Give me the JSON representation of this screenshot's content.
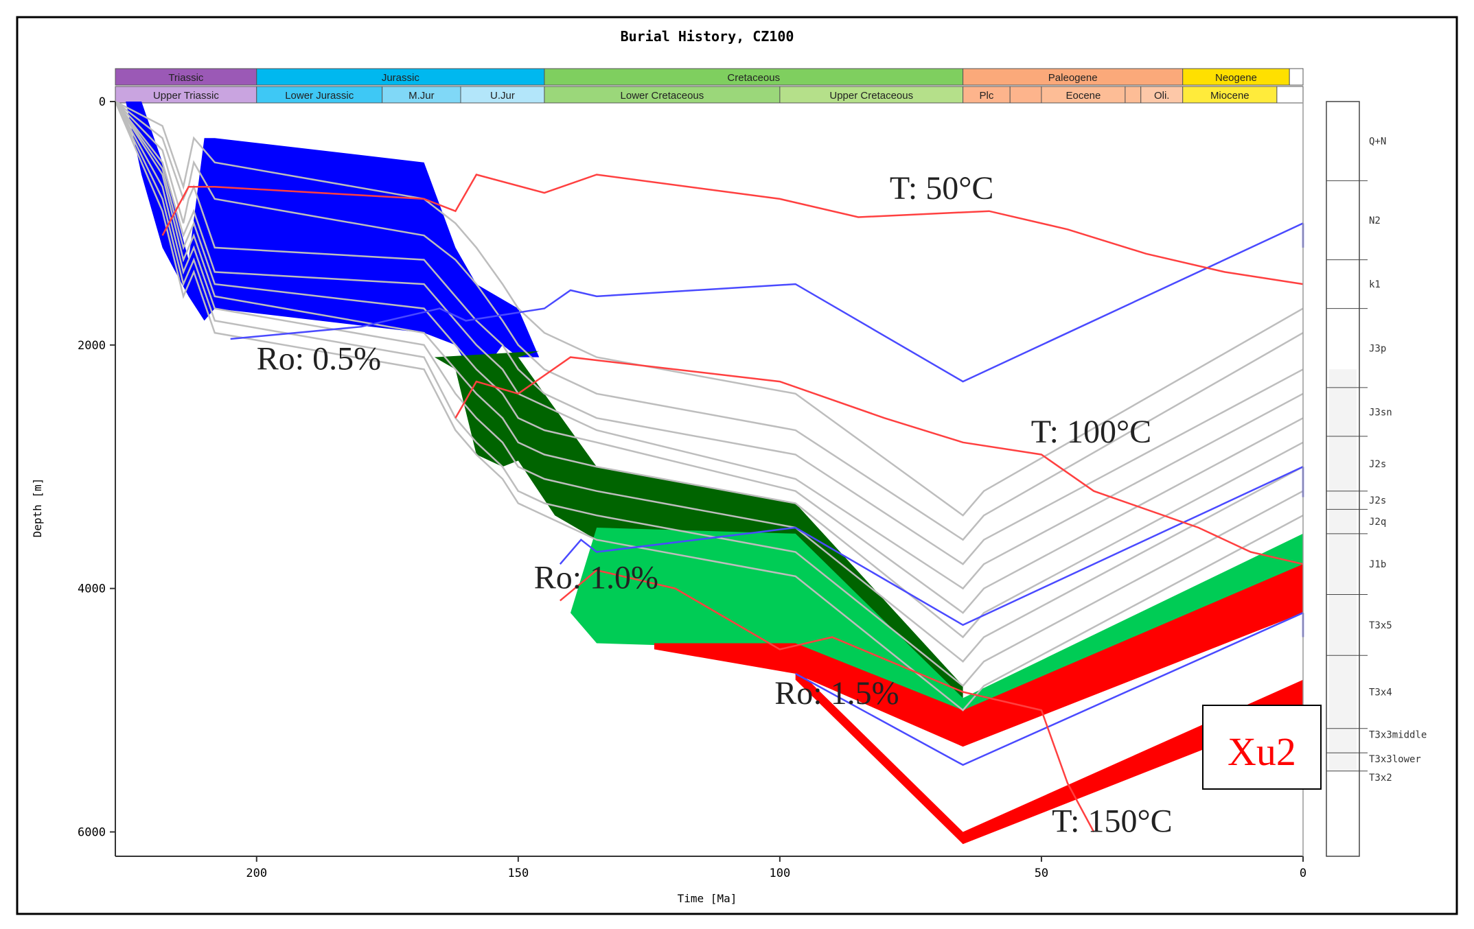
{
  "chart_data": {
    "type": "burial-history",
    "title": "Burial History, CZ100",
    "xlabel": "Time [Ma]",
    "ylabel": "Depth [m]",
    "xlim": [
      227,
      0
    ],
    "ylim": [
      0,
      6200
    ],
    "xticks": [
      200,
      150,
      100,
      50,
      0
    ],
    "yticks": [
      0,
      2000,
      4000,
      6000
    ],
    "periods": [
      {
        "label": "Triassic",
        "start": 227,
        "end": 200,
        "color": "#9b59b6"
      },
      {
        "label": "Jurassic",
        "start": 200,
        "end": 145,
        "color": "#00b8ef"
      },
      {
        "label": "Cretaceous",
        "start": 145,
        "end": 65,
        "color": "#7fcf5f"
      },
      {
        "label": "Paleogene",
        "start": 65,
        "end": 23,
        "color": "#fba97a"
      },
      {
        "label": "Neogene",
        "start": 23,
        "end": 2.6,
        "color": "#ffe000"
      },
      {
        "label": "",
        "start": 2.6,
        "end": 0,
        "color": "#ffffff"
      }
    ],
    "epochs": [
      {
        "label": "Upper Triassic",
        "start": 227,
        "end": 200,
        "color": "#c9a4e0"
      },
      {
        "label": "Lower Jurassic",
        "start": 200,
        "end": 176,
        "color": "#3ec8f5"
      },
      {
        "label": "M.Jur",
        "start": 176,
        "end": 161,
        "color": "#80d8f7"
      },
      {
        "label": "U.Jur",
        "start": 161,
        "end": 145,
        "color": "#b3e6fa"
      },
      {
        "label": "Lower Cretaceous",
        "start": 145,
        "end": 100,
        "color": "#9bd77a"
      },
      {
        "label": "Upper Cretaceous",
        "start": 100,
        "end": 65,
        "color": "#b5e08a"
      },
      {
        "label": "Plc",
        "start": 65,
        "end": 56,
        "color": "#fdb48c"
      },
      {
        "label": "",
        "start": 56,
        "end": 50,
        "color": "#fdb48c"
      },
      {
        "label": "Eocene",
        "start": 50,
        "end": 34,
        "color": "#fdbd96"
      },
      {
        "label": "",
        "start": 34,
        "end": 31,
        "color": "#fdbd96"
      },
      {
        "label": "Oli.",
        "start": 31,
        "end": 23,
        "color": "#fdc8a8"
      },
      {
        "label": "Miocene",
        "start": 23,
        "end": 5,
        "color": "#ffeb3b"
      },
      {
        "label": "",
        "start": 5,
        "end": 0,
        "color": "#ffffff"
      }
    ],
    "horizon_times": [
      227,
      218,
      214,
      213,
      212,
      208,
      168,
      162,
      158,
      153,
      150,
      145,
      135,
      97,
      65,
      61,
      0
    ],
    "horizons": [
      [
        0,
        0,
        0,
        0,
        0,
        0,
        0,
        0,
        0,
        0,
        0,
        0,
        0,
        0,
        0,
        0,
        0
      ],
      [
        0,
        200,
        700,
        500,
        300,
        500,
        800,
        1000,
        1200,
        1500,
        1700,
        1900,
        2100,
        2400,
        3400,
        3200,
        1700
      ],
      [
        0,
        300,
        800,
        700,
        500,
        800,
        1100,
        1300,
        1500,
        1800,
        2000,
        2200,
        2400,
        2700,
        3600,
        3400,
        1900
      ],
      [
        0,
        400,
        1000,
        800,
        700,
        1200,
        1300,
        1600,
        1800,
        2000,
        2200,
        2400,
        2600,
        2900,
        3800,
        3600,
        2200
      ],
      [
        0,
        500,
        1100,
        1000,
        900,
        1400,
        1500,
        1800,
        2000,
        2200,
        2400,
        2500,
        2700,
        3100,
        4000,
        3800,
        2400
      ],
      [
        0,
        550,
        1200,
        1100,
        1000,
        1500,
        1700,
        2000,
        2200,
        2400,
        2600,
        2700,
        2800,
        3200,
        4200,
        4000,
        2600
      ],
      [
        0,
        600,
        1300,
        1200,
        1100,
        1600,
        1900,
        2200,
        2400,
        2600,
        2800,
        2900,
        3000,
        3300,
        4400,
        4200,
        2800
      ],
      [
        0,
        700,
        1400,
        1300,
        1200,
        1700,
        2000,
        2400,
        2600,
        2800,
        3000,
        3100,
        3200,
        3500,
        4600,
        4400,
        3000
      ],
      [
        0,
        800,
        1500,
        1400,
        1300,
        1800,
        2100,
        2600,
        2800,
        3000,
        3200,
        3300,
        3400,
        3700,
        4800,
        4600,
        3200
      ],
      [
        0,
        900,
        1600,
        1500,
        1400,
        1900,
        2200,
        2700,
        2900,
        3100,
        3300,
        3400,
        3600,
        3900,
        5000,
        4800,
        3400
      ]
    ],
    "zones": [
      {
        "name": "immature-blue",
        "color": "#0000ff",
        "upper": [
          [
            225,
            0
          ],
          [
            222,
            0
          ],
          [
            218,
            500
          ],
          [
            213,
            1300
          ],
          [
            210,
            300
          ],
          [
            208,
            300
          ],
          [
            168,
            500
          ],
          [
            162,
            1200
          ],
          [
            158,
            1500
          ],
          [
            150,
            1700
          ],
          [
            146,
            2100
          ]
        ],
        "lower": [
          [
            146,
            2100
          ],
          [
            150,
            2100
          ],
          [
            153,
            2000
          ],
          [
            158,
            2300
          ],
          [
            162,
            2000
          ],
          [
            168,
            1900
          ],
          [
            208,
            1700
          ],
          [
            210,
            1800
          ],
          [
            213,
            1600
          ],
          [
            218,
            1200
          ],
          [
            222,
            600
          ],
          [
            225,
            0
          ]
        ]
      },
      {
        "name": "mature-darkgreen",
        "color": "#006400",
        "upper": [
          [
            146,
            2050
          ],
          [
            150,
            2100
          ],
          [
            135,
            3000
          ],
          [
            97,
            3300
          ],
          [
            65,
            4800
          ]
        ],
        "lower": [
          [
            65,
            4950
          ],
          [
            97,
            3600
          ],
          [
            135,
            3600
          ],
          [
            143,
            3400
          ],
          [
            150,
            2950
          ],
          [
            153,
            3000
          ],
          [
            158,
            2900
          ],
          [
            162,
            2200
          ],
          [
            166,
            2100
          ]
        ]
      },
      {
        "name": "late-mature-green",
        "color": "#00cc55",
        "upper": [
          [
            135,
            3500
          ],
          [
            97,
            3550
          ],
          [
            65,
            4900
          ],
          [
            0,
            3550
          ]
        ],
        "lower": [
          [
            0,
            3850
          ],
          [
            65,
            5000
          ],
          [
            97,
            4500
          ],
          [
            135,
            4450
          ],
          [
            140,
            4200
          ]
        ]
      },
      {
        "name": "gas-red",
        "color": "#ff0000",
        "upper": [
          [
            124,
            4450
          ],
          [
            97,
            4450
          ],
          [
            65,
            5000
          ],
          [
            0,
            3800
          ]
        ],
        "lower": [
          [
            0,
            4200
          ],
          [
            65,
            5300
          ],
          [
            97,
            4700
          ],
          [
            124,
            4500
          ]
        ]
      },
      {
        "name": "deep-red",
        "color": "#ff0000",
        "upper": [
          [
            97,
            4650
          ],
          [
            65,
            6000
          ],
          [
            0,
            4750
          ]
        ],
        "lower": [
          [
            0,
            5000
          ],
          [
            65,
            6100
          ],
          [
            97,
            4750
          ]
        ]
      }
    ],
    "isotherms": [
      {
        "label": "T: 50°C",
        "points": [
          [
            218,
            1100
          ],
          [
            213,
            700
          ],
          [
            208,
            700
          ],
          [
            168,
            800
          ],
          [
            162,
            900
          ],
          [
            158,
            600
          ],
          [
            145,
            750
          ],
          [
            135,
            600
          ],
          [
            100,
            800
          ],
          [
            85,
            950
          ],
          [
            60,
            900
          ],
          [
            45,
            1050
          ],
          [
            30,
            1250
          ],
          [
            15,
            1400
          ],
          [
            0,
            1500
          ]
        ]
      },
      {
        "label": "T: 100°C",
        "points": [
          [
            162,
            2600
          ],
          [
            158,
            2300
          ],
          [
            150,
            2400
          ],
          [
            140,
            2100
          ],
          [
            100,
            2300
          ],
          [
            80,
            2600
          ],
          [
            65,
            2800
          ],
          [
            50,
            2900
          ],
          [
            40,
            3200
          ],
          [
            20,
            3500
          ],
          [
            10,
            3700
          ],
          [
            0,
            3800
          ]
        ]
      },
      {
        "label": "T: 150°C",
        "points": [
          [
            142,
            4100
          ],
          [
            135,
            3850
          ],
          [
            120,
            4000
          ],
          [
            100,
            4500
          ],
          [
            90,
            4400
          ],
          [
            65,
            4850
          ],
          [
            50,
            5000
          ],
          [
            45,
            5600
          ],
          [
            40,
            6000
          ]
        ]
      }
    ],
    "ro_lines": [
      {
        "label": "Ro: 0.5%",
        "points": [
          [
            205,
            1950
          ],
          [
            180,
            1850
          ],
          [
            165,
            1700
          ],
          [
            160,
            1800
          ],
          [
            145,
            1700
          ],
          [
            140,
            1550
          ],
          [
            135,
            1600
          ],
          [
            97,
            1500
          ],
          [
            65,
            2300
          ],
          [
            0,
            1000
          ]
        ]
      },
      {
        "label": "Ro: 1.0%",
        "points": [
          [
            142,
            3800
          ],
          [
            138,
            3600
          ],
          [
            135,
            3700
          ],
          [
            97,
            3500
          ],
          [
            65,
            4300
          ],
          [
            0,
            3000
          ]
        ]
      },
      {
        "label": "Ro: 1.5%",
        "points": [
          [
            97,
            4700
          ],
          [
            65,
            5450
          ],
          [
            0,
            4200
          ]
        ]
      }
    ],
    "ro_end_segments": [
      {
        "points": [
          [
            0,
            1000
          ],
          [
            0,
            1200
          ]
        ]
      },
      {
        "points": [
          [
            0,
            3000
          ],
          [
            0,
            3250
          ]
        ]
      },
      {
        "points": [
          [
            0,
            4200
          ],
          [
            0,
            4400
          ]
        ]
      }
    ],
    "formations": [
      "Q+N",
      "N2",
      "k1",
      "J3p",
      "J3sn",
      "J2s",
      "J2s",
      "J2q",
      "J1b",
      "T3x5",
      "T3x4",
      "T3x3middle",
      "T3x3lower",
      "T3x2"
    ],
    "formation_depths": [
      0,
      650,
      1300,
      1700,
      2350,
      2750,
      3200,
      3350,
      3550,
      4050,
      4550,
      5150,
      5350,
      5500
    ],
    "well_label": "Xu2",
    "ro_label_positions": [
      [
        200,
        2200
      ],
      [
        147,
        4000
      ],
      [
        101,
        4950
      ]
    ],
    "temp_label_positions": [
      [
        79,
        800
      ],
      [
        52,
        2800
      ],
      [
        48,
        6000
      ]
    ]
  }
}
